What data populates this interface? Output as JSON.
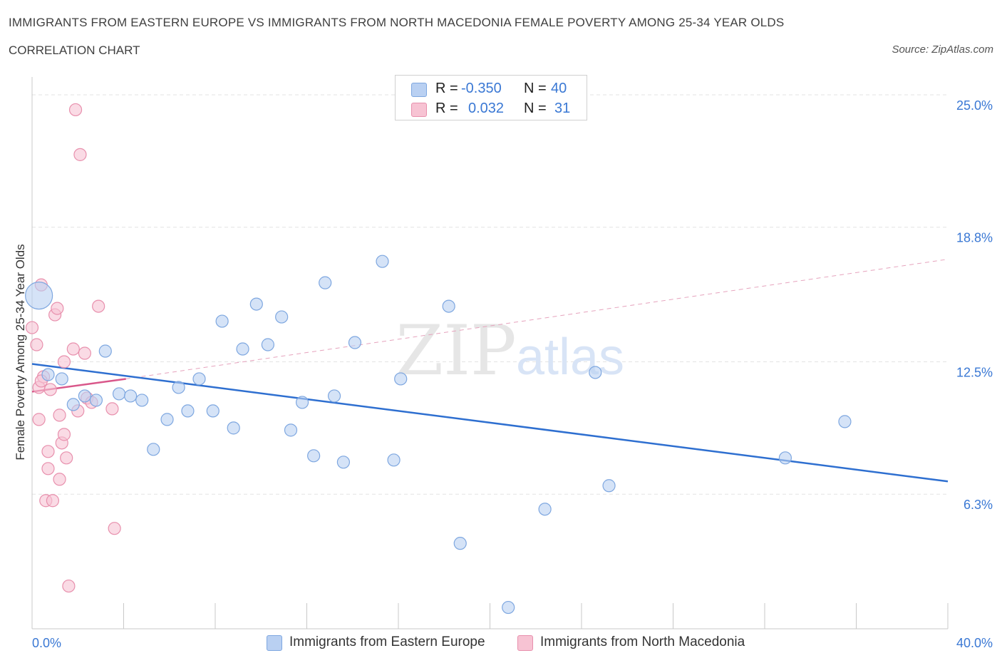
{
  "header": {
    "title": "IMMIGRANTS FROM EASTERN EUROPE VS IMMIGRANTS FROM NORTH MACEDONIA FEMALE POVERTY AMONG 25-34 YEAR OLDS",
    "subtitle": "CORRELATION CHART",
    "source": "Source: ZipAtlas.com"
  },
  "watermark": {
    "zip": "ZIP",
    "atlas": "atlas"
  },
  "legend": {
    "r_label": "R =",
    "n_label": "N =",
    "rows": [
      {
        "r": "-0.350",
        "n": "40"
      },
      {
        "r": "0.032",
        "n": "31"
      }
    ]
  },
  "colors": {
    "blue_fill": "#b9d0f2",
    "blue_stroke": "#7ea7e0",
    "blue_line": "#2e6fd0",
    "pink_fill": "#f7c3d3",
    "pink_stroke": "#e890ad",
    "pink_line": "#d9578a",
    "axis_text": "#3a78d4",
    "grid": "#e3e3e3"
  },
  "chart_data": {
    "type": "scatter",
    "title": "IMMIGRANTS FROM EASTERN EUROPE VS IMMIGRANTS FROM NORTH MACEDONIA FEMALE POVERTY AMONG 25-34 YEAR OLDS",
    "subtitle": "CORRELATION CHART",
    "xlabel": "",
    "ylabel": "Female Poverty Among 25-34 Year Olds",
    "xlim": [
      0,
      40
    ],
    "ylim": [
      0,
      25.5
    ],
    "x_tick_labels": [
      "0.0%",
      "40.0%"
    ],
    "y_ticks": [
      6.3,
      12.5,
      18.8,
      25.0
    ],
    "y_tick_labels": [
      "6.3%",
      "12.5%",
      "18.8%",
      "25.0%"
    ],
    "grid": true,
    "legend_position": "top-center",
    "series": [
      {
        "name": "Immigrants from Eastern Europe",
        "color": "#b9d0f2",
        "R": -0.35,
        "N": 40,
        "trend": {
          "x": [
            0,
            40
          ],
          "y": [
            12.4,
            6.9
          ],
          "style": "solid"
        },
        "points": [
          {
            "x": 0.3,
            "y": 15.6,
            "size": "large"
          },
          {
            "x": 0.7,
            "y": 11.9
          },
          {
            "x": 1.3,
            "y": 11.7
          },
          {
            "x": 1.8,
            "y": 10.5
          },
          {
            "x": 2.3,
            "y": 10.9
          },
          {
            "x": 2.8,
            "y": 10.7
          },
          {
            "x": 3.2,
            "y": 13.0
          },
          {
            "x": 3.8,
            "y": 11.0
          },
          {
            "x": 4.3,
            "y": 10.9
          },
          {
            "x": 4.8,
            "y": 10.7
          },
          {
            "x": 5.3,
            "y": 8.4
          },
          {
            "x": 5.9,
            "y": 9.8
          },
          {
            "x": 6.4,
            "y": 11.3
          },
          {
            "x": 6.8,
            "y": 10.2
          },
          {
            "x": 7.3,
            "y": 11.7
          },
          {
            "x": 7.9,
            "y": 10.2
          },
          {
            "x": 8.3,
            "y": 14.4
          },
          {
            "x": 8.8,
            "y": 9.4
          },
          {
            "x": 9.2,
            "y": 13.1
          },
          {
            "x": 9.8,
            "y": 15.2
          },
          {
            "x": 10.3,
            "y": 13.3
          },
          {
            "x": 10.9,
            "y": 14.6
          },
          {
            "x": 11.3,
            "y": 9.3
          },
          {
            "x": 11.8,
            "y": 10.6
          },
          {
            "x": 12.3,
            "y": 8.1
          },
          {
            "x": 12.8,
            "y": 16.2
          },
          {
            "x": 13.2,
            "y": 10.9
          },
          {
            "x": 13.6,
            "y": 7.8
          },
          {
            "x": 14.1,
            "y": 13.4
          },
          {
            "x": 15.3,
            "y": 17.2
          },
          {
            "x": 15.8,
            "y": 7.9
          },
          {
            "x": 16.1,
            "y": 11.7
          },
          {
            "x": 18.2,
            "y": 15.1
          },
          {
            "x": 18.7,
            "y": 4.0
          },
          {
            "x": 20.8,
            "y": 1.0
          },
          {
            "x": 22.4,
            "y": 5.6
          },
          {
            "x": 24.6,
            "y": 12.0
          },
          {
            "x": 25.2,
            "y": 6.7
          },
          {
            "x": 32.9,
            "y": 8.0
          },
          {
            "x": 35.5,
            "y": 9.7
          }
        ]
      },
      {
        "name": "Immigrants from North Macedonia",
        "color": "#f7c3d3",
        "R": 0.032,
        "N": 31,
        "trend": {
          "x": [
            0,
            4.1
          ],
          "y": [
            11.1,
            11.7
          ],
          "style": "solid",
          "extended": {
            "x": [
              4.1,
              40
            ],
            "y": [
              11.7,
              17.3
            ],
            "style": "dashed"
          }
        },
        "points": [
          {
            "x": 0.0,
            "y": 14.1
          },
          {
            "x": 0.2,
            "y": 13.3
          },
          {
            "x": 0.3,
            "y": 11.3
          },
          {
            "x": 0.3,
            "y": 9.8
          },
          {
            "x": 0.4,
            "y": 16.1
          },
          {
            "x": 0.5,
            "y": 11.8
          },
          {
            "x": 0.6,
            "y": 6.0
          },
          {
            "x": 0.7,
            "y": 8.3
          },
          {
            "x": 0.7,
            "y": 7.5
          },
          {
            "x": 0.8,
            "y": 11.2
          },
          {
            "x": 0.9,
            "y": 6.0
          },
          {
            "x": 1.0,
            "y": 14.7
          },
          {
            "x": 1.1,
            "y": 15.0
          },
          {
            "x": 1.2,
            "y": 7.0
          },
          {
            "x": 1.2,
            "y": 10.0
          },
          {
            "x": 1.3,
            "y": 8.7
          },
          {
            "x": 1.4,
            "y": 9.1
          },
          {
            "x": 1.4,
            "y": 12.5
          },
          {
            "x": 1.5,
            "y": 8.0
          },
          {
            "x": 1.6,
            "y": 2.0
          },
          {
            "x": 1.8,
            "y": 13.1
          },
          {
            "x": 1.9,
            "y": 24.3
          },
          {
            "x": 2.0,
            "y": 10.2
          },
          {
            "x": 2.1,
            "y": 22.2
          },
          {
            "x": 2.3,
            "y": 12.9
          },
          {
            "x": 2.4,
            "y": 10.8
          },
          {
            "x": 2.6,
            "y": 10.6
          },
          {
            "x": 2.9,
            "y": 15.1
          },
          {
            "x": 3.5,
            "y": 10.3
          },
          {
            "x": 3.6,
            "y": 4.7
          },
          {
            "x": 0.4,
            "y": 11.6
          }
        ]
      }
    ]
  }
}
